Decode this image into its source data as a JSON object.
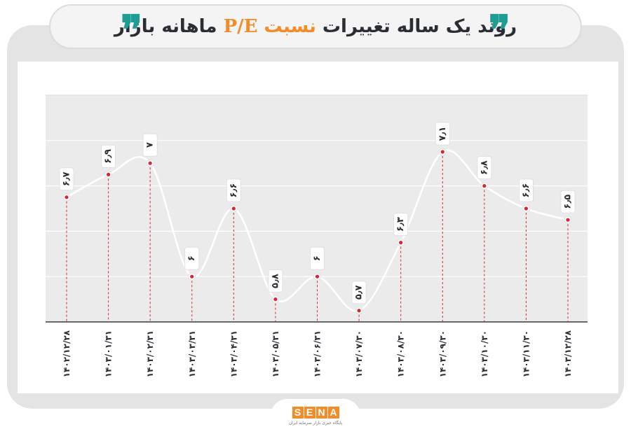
{
  "header": {
    "title_before": "روند یک ساله تغییرات",
    "title_highlight": "نسبت",
    "title_metric": "P/E",
    "title_after": "ماهانه بازار",
    "quote_glyph": "❞",
    "quote_color": "#1f9d95",
    "accent_color": "#f28c28"
  },
  "chart_data": {
    "type": "line",
    "title": "روند یک ساله تغییرات نسبت P/E ماهانه بازار",
    "xlabel": "",
    "ylabel": "",
    "categories": [
      "۱۴۰۲/۱۲/۲۸",
      "۱۴۰۳/۰۱/۳۱",
      "۱۴۰۳/۰۲/۳۱",
      "۱۴۰۳/۰۳/۳۱",
      "۱۴۰۳/۰۴/۳۱",
      "۱۴۰۳/۰۵/۳۱",
      "۱۴۰۳/۰۶/۳۱",
      "۱۴۰۳/۰۷/۳۰",
      "۱۴۰۳/۰۸/۳۰",
      "۱۴۰۳/۰۹/۳۰",
      "۱۴۰۳/۱۰/۳۰",
      "۱۴۰۳/۱۱/۳۰",
      "۱۴۰۳/۱۲/۲۸"
    ],
    "values": [
      6.7,
      6.9,
      7.0,
      6.0,
      6.6,
      5.8,
      6.0,
      5.7,
      6.3,
      7.1,
      6.8,
      6.6,
      6.5
    ],
    "value_labels": [
      "۶٫۷",
      "۶٫۹",
      "۷",
      "۶",
      "۶٫۶",
      "۵٫۸",
      "۶",
      "۵٫۷",
      "۶٫۳",
      "۷٫۱",
      "۶٫۸",
      "۶٫۶",
      "۶٫۵"
    ],
    "ylim": [
      5.6,
      7.6
    ],
    "grid": true,
    "line_color": "#ffffff",
    "point_color": "#d7262d",
    "plot_background": "#ebebeb"
  },
  "footer": {
    "logo_letters": [
      "S",
      "E",
      "N",
      "A"
    ],
    "tagline": "پایگاه خبری بازار سرمایه ایران"
  }
}
